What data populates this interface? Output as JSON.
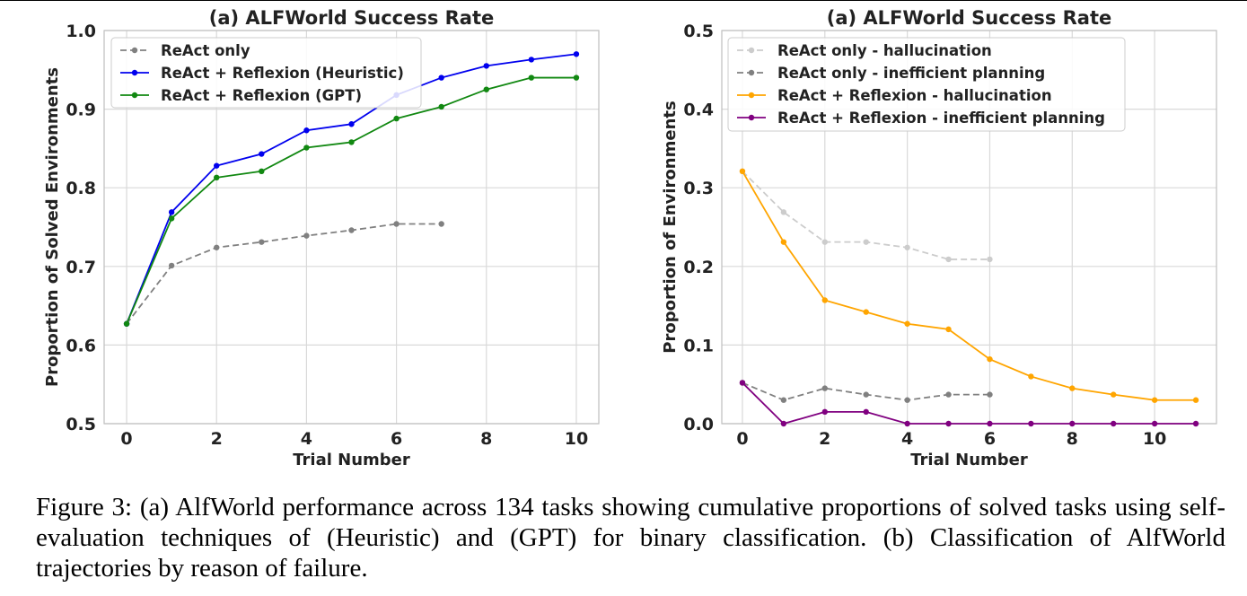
{
  "chart_data": [
    {
      "type": "line",
      "title": "(a) ALFWorld Success Rate",
      "xlabel": "Trial Number",
      "ylabel": "Proportion of Solved Environments",
      "xlim": [
        -0.5,
        10.5
      ],
      "ylim": [
        0.5,
        1.0
      ],
      "xticks": [
        0,
        2,
        4,
        6,
        8,
        10
      ],
      "yticks": [
        0.5,
        0.6,
        0.7,
        0.8,
        0.9,
        1.0
      ],
      "tick_format": 1,
      "grid": true,
      "legend_position": "top-left",
      "series": [
        {
          "name": "ReAct only",
          "color": "#808080",
          "dashed": true,
          "x": [
            0,
            1,
            2,
            3,
            4,
            5,
            6,
            7
          ],
          "y": [
            0.627,
            0.701,
            0.724,
            0.731,
            0.739,
            0.746,
            0.754,
            0.754
          ]
        },
        {
          "name": "ReAct + Reflexion (Heuristic)",
          "color": "#0000ee",
          "dashed": false,
          "x": [
            0,
            1,
            2,
            3,
            4,
            5,
            6,
            7,
            8,
            9,
            10
          ],
          "y": [
            0.627,
            0.769,
            0.828,
            0.843,
            0.873,
            0.881,
            0.918,
            0.94,
            0.955,
            0.963,
            0.97
          ]
        },
        {
          "name": "ReAct + Reflexion (GPT)",
          "color": "#118811",
          "dashed": false,
          "x": [
            0,
            1,
            2,
            3,
            4,
            5,
            6,
            7,
            8,
            9,
            10
          ],
          "y": [
            0.627,
            0.761,
            0.813,
            0.821,
            0.851,
            0.858,
            0.888,
            0.903,
            0.925,
            0.94,
            0.94
          ]
        }
      ]
    },
    {
      "type": "line",
      "title": "(a) ALFWorld Success Rate",
      "xlabel": "Trial Number",
      "ylabel": "Proportion of Environments",
      "xlim": [
        -0.5,
        11.5
      ],
      "ylim": [
        0.0,
        0.5
      ],
      "xticks": [
        0,
        2,
        4,
        6,
        8,
        10
      ],
      "yticks": [
        0.0,
        0.1,
        0.2,
        0.3,
        0.4,
        0.5
      ],
      "tick_format": 1,
      "grid": true,
      "legend_position": "top-left",
      "series": [
        {
          "name": "ReAct only - hallucination",
          "color": "#cccccc",
          "dashed": true,
          "x": [
            0,
            1,
            2,
            3,
            4,
            5,
            6
          ],
          "y": [
            0.321,
            0.269,
            0.231,
            0.231,
            0.224,
            0.209,
            0.209
          ]
        },
        {
          "name": "ReAct only - inefficient planning",
          "color": "#808080",
          "dashed": true,
          "x": [
            0,
            1,
            2,
            3,
            4,
            5,
            6
          ],
          "y": [
            0.052,
            0.03,
            0.045,
            0.037,
            0.03,
            0.037,
            0.037
          ]
        },
        {
          "name": "ReAct + Reflexion - hallucination",
          "color": "#ffa500",
          "dashed": false,
          "x": [
            0,
            1,
            2,
            3,
            4,
            5,
            6,
            7,
            8,
            9,
            10,
            11
          ],
          "y": [
            0.321,
            0.231,
            0.157,
            0.142,
            0.127,
            0.12,
            0.082,
            0.06,
            0.045,
            0.037,
            0.03,
            0.03
          ]
        },
        {
          "name": "ReAct + Reflexion - inefficient planning",
          "color": "#800080",
          "dashed": false,
          "x": [
            0,
            1,
            2,
            3,
            4,
            5,
            6,
            7,
            8,
            9,
            10,
            11
          ],
          "y": [
            0.052,
            0.0,
            0.015,
            0.015,
            0.0,
            0.0,
            0.0,
            0.0,
            0.0,
            0.0,
            0.0,
            0.0
          ]
        }
      ]
    }
  ],
  "caption": "Figure 3: (a) AlfWorld performance across 134 tasks showing cumulative proportions of solved tasks using self-evaluation techniques of (Heuristic) and (GPT) for binary classification. (b) Classification of AlfWorld trajectories by reason of failure."
}
